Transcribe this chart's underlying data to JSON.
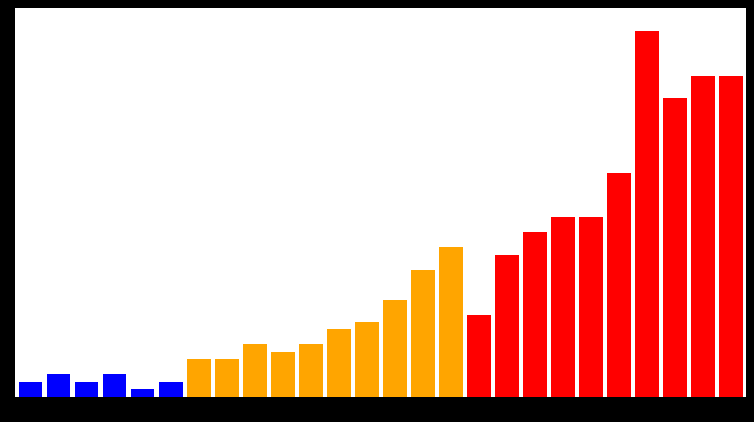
{
  "values": [
    2,
    3,
    2,
    3,
    1,
    2,
    5,
    5,
    7,
    6,
    7,
    9,
    10,
    13,
    17,
    20,
    11,
    19,
    22,
    24,
    24,
    30,
    49,
    40,
    43,
    43
  ],
  "colors": [
    "#0000ff",
    "#0000ff",
    "#0000ff",
    "#0000ff",
    "#0000ff",
    "#0000ff",
    "#ffa500",
    "#ffa500",
    "#ffa500",
    "#ffa500",
    "#ffa500",
    "#ffa500",
    "#ffa500",
    "#ffa500",
    "#ffa500",
    "#ffa500",
    "#ff0000",
    "#ff0000",
    "#ff0000",
    "#ff0000",
    "#ff0000",
    "#ff0000",
    "#ff0000",
    "#ff0000",
    "#ff0000",
    "#ff0000"
  ],
  "background_color": "#ffffff",
  "figsize": [
    7.54,
    4.22
  ],
  "dpi": 100,
  "ylim": [
    0,
    52
  ],
  "bar_width": 0.85
}
